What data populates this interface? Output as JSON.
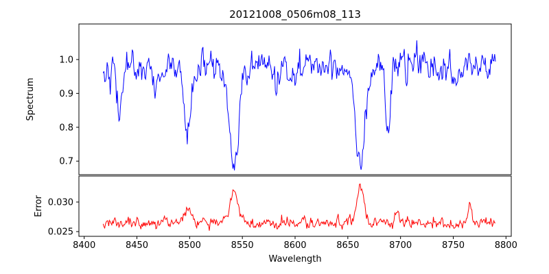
{
  "title": "20121008_0506m08_113",
  "chart_data": {
    "type": "line",
    "title": "20121008_0506m08_113",
    "xlabel": "Wavelength",
    "xlim": [
      8395,
      8805
    ],
    "x_ticks": [
      8400,
      8450,
      8500,
      8550,
      8600,
      8650,
      8700,
      8750,
      8800
    ],
    "x_tick_labels": [
      "8400",
      "8450",
      "8500",
      "8550",
      "8600",
      "8650",
      "8700",
      "8750",
      "8800"
    ],
    "x_data_range": [
      8418,
      8790
    ],
    "n_points": 500,
    "seed": 42,
    "grid": false,
    "legend": "none",
    "subplots": [
      {
        "name": "spectrum",
        "ylabel": "Spectrum",
        "ylim": [
          0.66,
          1.105
        ],
        "y_ticks": [
          0.7,
          0.8,
          0.9,
          1.0
        ],
        "y_tick_labels": [
          "0.7",
          "0.8",
          "0.9",
          "1.0"
        ],
        "line_color": "#0000ff",
        "continuum_level": 0.98,
        "noise_sigma": 0.021,
        "absorption_lines": [
          {
            "center": 8433,
            "depth": 0.14,
            "width": 2.5
          },
          {
            "center": 8468,
            "depth": 0.1,
            "width": 2.2
          },
          {
            "center": 8498,
            "depth": 0.21,
            "width": 3.2
          },
          {
            "center": 8542,
            "depth": 0.31,
            "width": 4.6
          },
          {
            "center": 8582,
            "depth": 0.06,
            "width": 2.0
          },
          {
            "center": 8662,
            "depth": 0.28,
            "width": 4.2
          },
          {
            "center": 8688,
            "depth": 0.17,
            "width": 2.4
          },
          {
            "center": 8751,
            "depth": 0.08,
            "width": 2.0
          }
        ]
      },
      {
        "name": "error",
        "ylabel": "Error",
        "ylim": [
          0.0242,
          0.0344
        ],
        "y_ticks": [
          0.025,
          0.03
        ],
        "y_tick_labels": [
          "0.025",
          "0.030"
        ],
        "line_color": "#ff0000",
        "baseline_level": 0.0263,
        "noise_sigma": 0.00045,
        "peaks": [
          {
            "center": 8498,
            "height": 0.0022,
            "width": 3.0
          },
          {
            "center": 8542,
            "height": 0.0058,
            "width": 3.6
          },
          {
            "center": 8662,
            "height": 0.0063,
            "width": 3.4
          },
          {
            "center": 8697,
            "height": 0.0018,
            "width": 2.0
          },
          {
            "center": 8766,
            "height": 0.0034,
            "width": 1.8
          }
        ]
      }
    ]
  },
  "layout_labels": {
    "figure_name": "spectrum-with-error-figure"
  }
}
